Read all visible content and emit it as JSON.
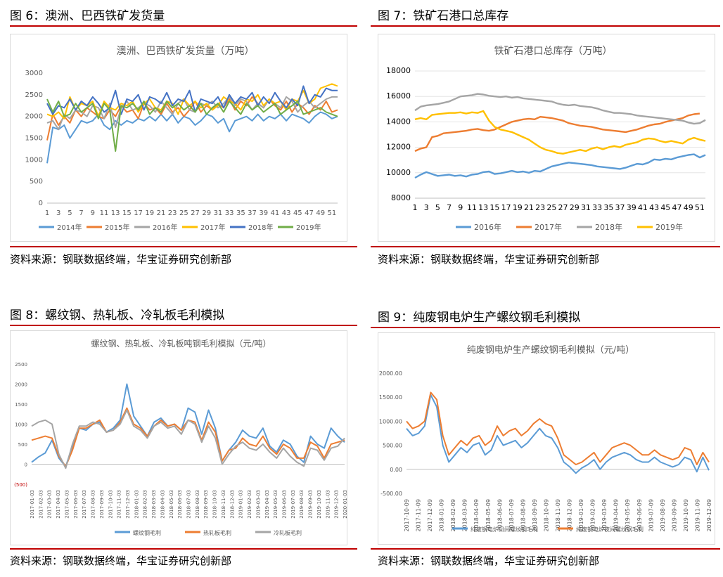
{
  "panels": [
    {
      "fig_title": "图 6：澳洲、巴西铁矿发货量",
      "source": "资料来源：钢联数据终端，华宝证券研究创新部",
      "chart_title": "澳洲、巴西铁矿发货量（万吨）"
    },
    {
      "fig_title": "图 7：铁矿石港口总库存",
      "source": "资料来源：钢联数据终端，华宝证券研究创新部",
      "chart_title": "铁矿石港口总库存（万吨）"
    },
    {
      "fig_title": "图 8：螺纹钢、热轧板、冷轧板毛利模拟",
      "source": "资料来源：钢联数据终端，华宝证券研究创新部",
      "chart_title": "螺纹钢、热轧板、冷轧板吨钢毛利模拟（元/吨）"
    },
    {
      "fig_title": "图 9：纯废钢电炉生产螺纹钢毛利模拟",
      "source": "资料来源：钢联数据终端，华宝证券研究创新部",
      "chart_title": "纯废钢电炉生产螺纹钢毛利模拟（元/吨）"
    }
  ],
  "chart_data": [
    {
      "type": "line",
      "title": "澳洲、巴西铁矿发货量（万吨）",
      "ylim": [
        0,
        3000
      ],
      "yticks": [
        "0",
        "500",
        "1000",
        "1500",
        "2000",
        "2500",
        "3000"
      ],
      "xticks": [
        "1",
        "3",
        "5",
        "7",
        "9",
        "11",
        "13",
        "15",
        "17",
        "19",
        "21",
        "23",
        "25",
        "27",
        "29",
        "31",
        "33",
        "35",
        "37",
        "39",
        "41",
        "43",
        "45",
        "47",
        "49",
        "51"
      ],
      "x_range": [
        1,
        52
      ],
      "legend_position": "bottom",
      "series": [
        {
          "name": "2014年",
          "color": "#5b9bd5",
          "values": [
            920,
            1750,
            1700,
            1800,
            1500,
            1700,
            1900,
            1850,
            1900,
            2050,
            1800,
            1700,
            1900,
            1800,
            1900,
            1850,
            1950,
            1900,
            2000,
            1900,
            2050,
            1900,
            2050,
            1850,
            2000,
            1950,
            1800,
            1900,
            2050,
            2000,
            1850,
            1950,
            1650,
            1900,
            1950,
            2000,
            1900,
            2050,
            1900,
            2000,
            1950,
            2050,
            1900,
            2050,
            2000,
            1950,
            1850,
            2000,
            2100,
            2050,
            1950,
            2000
          ]
        },
        {
          "name": "2015年",
          "color": "#ed7d31",
          "values": [
            1450,
            2050,
            1800,
            2000,
            1850,
            2150,
            2000,
            2200,
            2100,
            2000,
            1950,
            2150,
            2000,
            2250,
            2100,
            2150,
            1950,
            2300,
            2150,
            2200,
            2050,
            2300,
            2100,
            2200,
            2000,
            2150,
            2350,
            2100,
            2250,
            2150,
            2300,
            2200,
            2400,
            2150,
            2350,
            2250,
            2450,
            2300,
            2200,
            2400,
            2250,
            2150,
            2350,
            2100,
            2300,
            2200,
            2050,
            2250,
            2150,
            2350,
            2100,
            2150
          ]
        },
        {
          "name": "2016年",
          "color": "#a5a5a5",
          "values": [
            1850,
            1900,
            1700,
            2050,
            1950,
            2150,
            2100,
            2000,
            2250,
            2200,
            1950,
            2300,
            1750,
            2200,
            2350,
            2150,
            2200,
            2300,
            2250,
            2100,
            2350,
            2200,
            2050,
            2300,
            2400,
            2150,
            2100,
            2300,
            2250,
            2350,
            2200,
            2300,
            2450,
            2250,
            2400,
            2350,
            2150,
            2300,
            2200,
            2400,
            2300,
            2200,
            2450,
            2350,
            2100,
            2250,
            2350,
            2200,
            2300,
            2400,
            2450,
            2450
          ]
        },
        {
          "name": "2017年",
          "color": "#ffc000",
          "values": [
            2050,
            2000,
            2100,
            1950,
            2450,
            2150,
            2300,
            2250,
            2350,
            2000,
            2350,
            2200,
            2150,
            2300,
            2250,
            2350,
            2100,
            2300,
            2400,
            2200,
            2150,
            2350,
            2300,
            2050,
            2400,
            2250,
            2350,
            2200,
            2300,
            2150,
            2250,
            2450,
            2350,
            2300,
            2150,
            2400,
            2350,
            2500,
            2250,
            2400,
            2300,
            2350,
            2150,
            2400,
            2350,
            2600,
            2300,
            2400,
            2650,
            2700,
            2750,
            2700
          ]
        },
        {
          "name": "2018年",
          "color": "#4472c4",
          "values": [
            2300,
            2050,
            2250,
            2200,
            2400,
            2150,
            2350,
            2250,
            2450,
            2300,
            2100,
            2200,
            2600,
            2050,
            2400,
            2350,
            2500,
            2150,
            2450,
            2400,
            2300,
            2550,
            2250,
            2400,
            2350,
            2600,
            2100,
            2400,
            2350,
            2300,
            2450,
            2200,
            2500,
            2300,
            2450,
            2400,
            2550,
            2250,
            2450,
            2300,
            2550,
            2350,
            2200,
            2400,
            2250,
            2700,
            2300,
            2500,
            2450,
            2650,
            2600,
            2600
          ]
        },
        {
          "name": "2019年",
          "color": "#70ad47",
          "values": [
            2400,
            2100,
            2350,
            2000,
            2050,
            2300,
            2100,
            2200,
            2300,
            1950,
            2300,
            2150,
            1200,
            2250,
            2200,
            2300,
            2150,
            2350,
            2050,
            2200,
            2100,
            2350,
            2200,
            2300,
            2150,
            2250,
            2100,
            2300,
            2050,
            2200,
            2300,
            2100,
            2350,
            2200,
            2050,
            2300,
            2150,
            2250,
            2100,
            2200,
            2300,
            2050,
            2150,
            2250,
            2350,
            2050,
            2100,
            2150,
            2200,
            2100,
            2050,
            2000
          ]
        }
      ]
    },
    {
      "type": "line",
      "title": "铁矿石港口总库存（万吨）",
      "ylim": [
        8000,
        18000
      ],
      "yticks": [
        "8000",
        "10000",
        "12000",
        "14000",
        "16000",
        "18000"
      ],
      "xticks": [
        "1",
        "3",
        "5",
        "7",
        "9",
        "11",
        "13",
        "15",
        "17",
        "19",
        "21",
        "23",
        "25",
        "27",
        "29",
        "31",
        "33",
        "35",
        "37",
        "39",
        "41",
        "43",
        "45",
        "47",
        "49",
        "51"
      ],
      "x_range": [
        1,
        52
      ],
      "legend_position": "bottom",
      "series": [
        {
          "name": "2016年",
          "color": "#5b9bd5",
          "values": [
            9600,
            9850,
            10050,
            9900,
            9750,
            9800,
            9850,
            9750,
            9800,
            9700,
            9850,
            9900,
            10050,
            10100,
            9900,
            9950,
            10050,
            10150,
            10050,
            10100,
            10000,
            10150,
            10100,
            10300,
            10500,
            10600,
            10700,
            10800,
            10750,
            10700,
            10650,
            10600,
            10500,
            10450,
            10400,
            10350,
            10300,
            10400,
            10550,
            10700,
            10650,
            10800,
            11050,
            11000,
            11100,
            11050,
            11200,
            11300,
            11400,
            11450,
            11200,
            11400
          ]
        },
        {
          "name": "2017年",
          "color": "#ed7d31",
          "values": [
            11700,
            11900,
            12000,
            12800,
            12900,
            13100,
            13150,
            13200,
            13250,
            13300,
            13400,
            13450,
            13350,
            13300,
            13400,
            13600,
            13800,
            14000,
            14100,
            14200,
            14250,
            14200,
            14400,
            14350,
            14300,
            14200,
            14100,
            13900,
            13800,
            13700,
            13650,
            13600,
            13500,
            13400,
            13350,
            13300,
            13250,
            13200,
            13300,
            13400,
            13550,
            13700,
            13800,
            13850,
            14000,
            14100,
            14200,
            14300,
            14500,
            14600,
            14650
          ]
        },
        {
          "name": "2018年",
          "color": "#a5a5a5",
          "values": [
            14900,
            15200,
            15300,
            15350,
            15400,
            15500,
            15600,
            15800,
            16000,
            16050,
            16100,
            16200,
            16150,
            16050,
            16000,
            15950,
            16000,
            15900,
            15950,
            15850,
            15800,
            15750,
            15700,
            15650,
            15600,
            15450,
            15350,
            15300,
            15350,
            15250,
            15200,
            15150,
            15050,
            14900,
            14800,
            14700,
            14700,
            14650,
            14600,
            14500,
            14450,
            14400,
            14350,
            14300,
            14250,
            14200,
            14150,
            14100,
            13950,
            13850,
            13900,
            14150
          ]
        },
        {
          "name": "2019年",
          "color": "#ffc000",
          "values": [
            14200,
            14300,
            14200,
            14550,
            14600,
            14650,
            14700,
            14700,
            14750,
            14650,
            14750,
            14700,
            14850,
            14100,
            13600,
            13400,
            13300,
            13200,
            13000,
            12800,
            12600,
            12300,
            12000,
            11800,
            11700,
            11550,
            11500,
            11600,
            11700,
            11800,
            11700,
            11900,
            12000,
            11850,
            12000,
            12100,
            12000,
            12200,
            12300,
            12400,
            12600,
            12700,
            12650,
            12500,
            12400,
            12500,
            12400,
            12300,
            12600,
            12750,
            12600,
            12500
          ]
        }
      ]
    },
    {
      "type": "line",
      "title": "螺纹钢、热轧板、冷轧板吨钢毛利模拟（元/吨）",
      "ylim": [
        -500,
        2500
      ],
      "yticks": [
        "(500)",
        "0",
        "500",
        "1000",
        "1500",
        "2000",
        "2500"
      ],
      "xticks": [
        "2017-01-03",
        "2017-02-03",
        "2017-03-03",
        "2017-04-03",
        "2017-05-03",
        "2017-06-03",
        "2017-07-03",
        "2017-08-03",
        "2017-09-03",
        "2017-10-03",
        "2017-11-03",
        "2017-12-03",
        "2018-01-03",
        "2018-02-03",
        "2018-03-03",
        "2018-04-03",
        "2018-05-03",
        "2018-06-03",
        "2018-07-03",
        "2018-08-03",
        "2018-09-03",
        "2018-10-03",
        "2018-11-03",
        "2018-12-03",
        "2019-01-03",
        "2019-02-03",
        "2019-03-03",
        "2019-04-03",
        "2019-05-03",
        "2019-06-03",
        "2019-07-03",
        "2019-08-03",
        "2019-09-03",
        "2019-10-03",
        "2019-11-03",
        "2019-12-03",
        "2020-01-03"
      ],
      "legend_position": "bottom",
      "series": [
        {
          "name": "螺纹钢毛利",
          "color": "#5b9bd5",
          "values": [
            50,
            180,
            280,
            600,
            150,
            -60,
            450,
            900,
            850,
            1000,
            1050,
            800,
            900,
            1100,
            2000,
            1200,
            950,
            700,
            1050,
            1150,
            950,
            1000,
            850,
            1400,
            1300,
            750,
            1350,
            900,
            80,
            350,
            550,
            850,
            700,
            650,
            900,
            450,
            300,
            600,
            500,
            200,
            50,
            700,
            500,
            400,
            900,
            700,
            550
          ]
        },
        {
          "name": "热轧板毛利",
          "color": "#ed7d31",
          "values": [
            600,
            650,
            700,
            650,
            200,
            -60,
            350,
            900,
            900,
            1000,
            1100,
            800,
            850,
            1050,
            1400,
            1000,
            900,
            700,
            950,
            1100,
            950,
            1000,
            850,
            1100,
            1050,
            600,
            1050,
            800,
            80,
            350,
            400,
            650,
            500,
            450,
            700,
            400,
            250,
            500,
            400,
            150,
            150,
            550,
            450,
            150,
            500,
            550,
            600
          ]
        },
        {
          "name": "冷轧板毛利",
          "color": "#a5a5a5",
          "values": [
            950,
            1050,
            1100,
            1000,
            250,
            -100,
            500,
            950,
            950,
            1050,
            1000,
            800,
            850,
            1000,
            1350,
            950,
            850,
            650,
            950,
            1050,
            900,
            950,
            750,
            1100,
            1000,
            550,
            950,
            650,
            0,
            250,
            450,
            550,
            400,
            350,
            500,
            300,
            150,
            400,
            200,
            50,
            -50,
            400,
            350,
            100,
            400,
            450,
            650
          ]
        }
      ]
    },
    {
      "type": "line",
      "title": "纯废钢电炉生产螺纹钢毛利模拟（元/吨）",
      "ylim": [
        -500,
        2000
      ],
      "yticks": [
        "-500.00",
        "0.00",
        "500.00",
        "1000.00",
        "1500.00",
        "2000.00"
      ],
      "xticks": [
        "2017-10-09",
        "2017-11-09",
        "2017-12-09",
        "2018-01-09",
        "2018-02-09",
        "2018-03-09",
        "2018-04-09",
        "2018-05-09",
        "2018-06-09",
        "2018-07-09",
        "2018-08-09",
        "2018-09-09",
        "2018-10-09",
        "2018-11-09",
        "2018-12-09",
        "2019-01-09",
        "2019-02-09",
        "2019-03-09",
        "2019-04-09",
        "2019-05-09",
        "2019-06-09",
        "2019-07-09",
        "2019-08-09",
        "2019-09-09",
        "2019-10-09",
        "2019-11-09",
        "2019-12-09"
      ],
      "legend_position": "bottom",
      "series": [
        {
          "name": "纯废钢电炉日间螺纹钢毛利",
          "color": "#5b9bd5",
          "values": [
            850,
            700,
            750,
            900,
            1550,
            1300,
            500,
            150,
            300,
            450,
            350,
            500,
            550,
            300,
            400,
            700,
            500,
            550,
            600,
            450,
            550,
            700,
            850,
            700,
            650,
            450,
            150,
            50,
            -80,
            30,
            100,
            200,
            0,
            150,
            250,
            300,
            350,
            300,
            200,
            150,
            150,
            250,
            150,
            100,
            50,
            100,
            250,
            200,
            -50,
            250,
            -20
          ]
        },
        {
          "name": "纯废钢电炉夜间螺纹钢毛利",
          "color": "#ed7d31",
          "values": [
            1000,
            850,
            900,
            1000,
            1600,
            1450,
            700,
            300,
            450,
            600,
            500,
            650,
            700,
            500,
            600,
            900,
            700,
            800,
            850,
            700,
            800,
            950,
            1050,
            950,
            900,
            650,
            300,
            200,
            100,
            150,
            250,
            350,
            150,
            300,
            450,
            500,
            550,
            500,
            400,
            300,
            300,
            400,
            300,
            250,
            200,
            250,
            450,
            400,
            100,
            350,
            150
          ]
        }
      ]
    }
  ]
}
